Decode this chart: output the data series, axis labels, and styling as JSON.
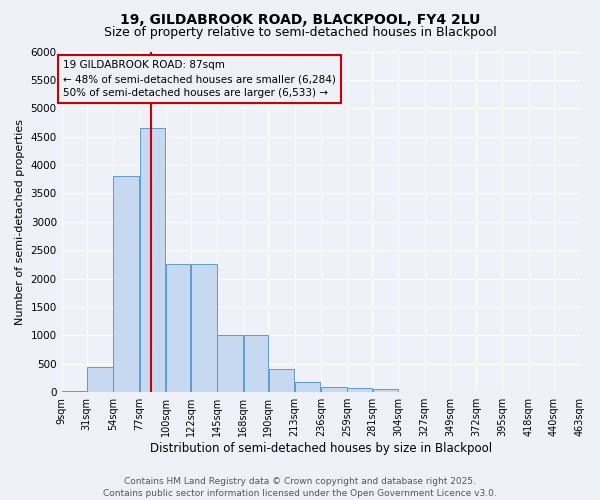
{
  "title1": "19, GILDABROOK ROAD, BLACKPOOL, FY4 2LU",
  "title2": "Size of property relative to semi-detached houses in Blackpool",
  "xlabel": "Distribution of semi-detached houses by size in Blackpool",
  "ylabel": "Number of semi-detached properties",
  "annotation_line1": "19 GILDABROOK ROAD: 87sqm",
  "annotation_line2": "← 48% of semi-detached houses are smaller (6,284)",
  "annotation_line3": "50% of semi-detached houses are larger (6,533) →",
  "footer_line1": "Contains HM Land Registry data © Crown copyright and database right 2025.",
  "footer_line2": "Contains public sector information licensed under the Open Government Licence v3.0.",
  "property_size": 87,
  "bin_edges": [
    9,
    31,
    54,
    77,
    100,
    122,
    145,
    168,
    190,
    213,
    236,
    259,
    281,
    304,
    327,
    349,
    372,
    395,
    418,
    440,
    463
  ],
  "bin_labels": [
    "9sqm",
    "31sqm",
    "54sqm",
    "77sqm",
    "100sqm",
    "122sqm",
    "145sqm",
    "168sqm",
    "190sqm",
    "213sqm",
    "236sqm",
    "259sqm",
    "281sqm",
    "304sqm",
    "327sqm",
    "349sqm",
    "372sqm",
    "395sqm",
    "418sqm",
    "440sqm",
    "463sqm"
  ],
  "bar_heights": [
    30,
    450,
    3800,
    4650,
    2250,
    2250,
    1000,
    1000,
    400,
    175,
    100,
    75,
    50,
    10,
    5,
    5,
    5,
    0,
    0,
    0
  ],
  "bar_color": "#c6d9f0",
  "bar_edge_color": "#5b9bd5",
  "vline_color": "#cc0000",
  "vline_x": 87,
  "ylim": [
    0,
    6000
  ],
  "yticks": [
    0,
    500,
    1000,
    1500,
    2000,
    2500,
    3000,
    3500,
    4000,
    4500,
    5000,
    5500,
    6000
  ],
  "bg_color": "#eef2f8",
  "grid_color": "#ffffff",
  "annotation_box_color": "#cc0000",
  "title1_fontsize": 10,
  "title2_fontsize": 9,
  "footer_fontsize": 6.5
}
